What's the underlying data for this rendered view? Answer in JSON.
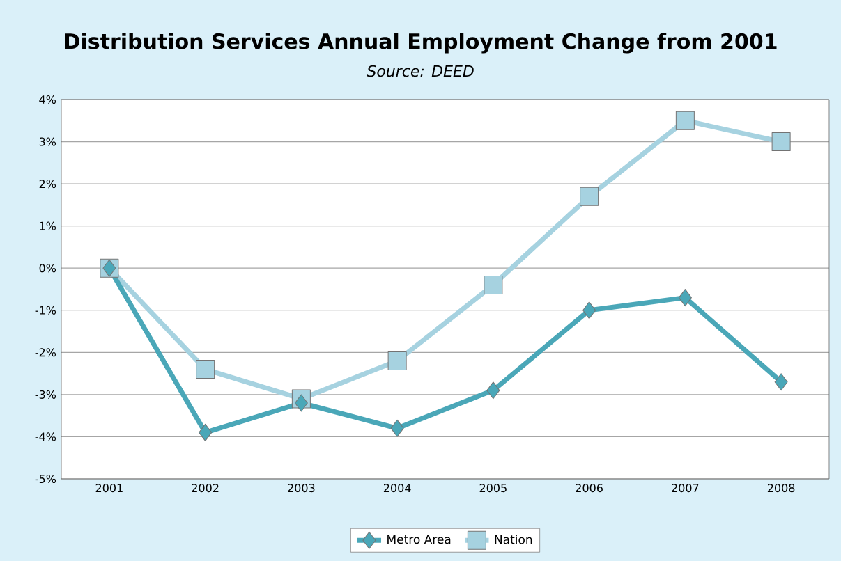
{
  "chart_data": {
    "type": "line",
    "title": "Distribution Services Annual Employment Change from 2001",
    "subtitle": "*Source: DEED*",
    "categories": [
      "2001",
      "2002",
      "2003",
      "2004",
      "2005",
      "2006",
      "2007",
      "2008"
    ],
    "series": [
      {
        "name": "Metro Area",
        "color": "#4aa7b8",
        "marker": "diamond",
        "values": [
          0,
          -3.9,
          -3.2,
          -3.8,
          -2.9,
          -1.0,
          -0.7,
          -2.7
        ]
      },
      {
        "name": "Nation",
        "color": "#a6d2e0",
        "marker": "square",
        "values": [
          0,
          -2.4,
          -3.1,
          -2.2,
          -0.4,
          1.7,
          3.5,
          3.0
        ]
      }
    ],
    "ylim": [
      -5,
      4
    ],
    "yticks": [
      {
        "value": -5,
        "label": "-5%"
      },
      {
        "value": -4,
        "label": "-4%"
      },
      {
        "value": -3,
        "label": "-3%"
      },
      {
        "value": -2,
        "label": "-2%"
      },
      {
        "value": -1,
        "label": "-1%"
      },
      {
        "value": 0,
        "label": "0%"
      },
      {
        "value": 1,
        "label": "1%"
      },
      {
        "value": 2,
        "label": "2%"
      },
      {
        "value": 3,
        "label": "3%"
      },
      {
        "value": 4,
        "label": "4%"
      }
    ],
    "grid": "y",
    "legend": "bottom",
    "line_style": "solid"
  }
}
